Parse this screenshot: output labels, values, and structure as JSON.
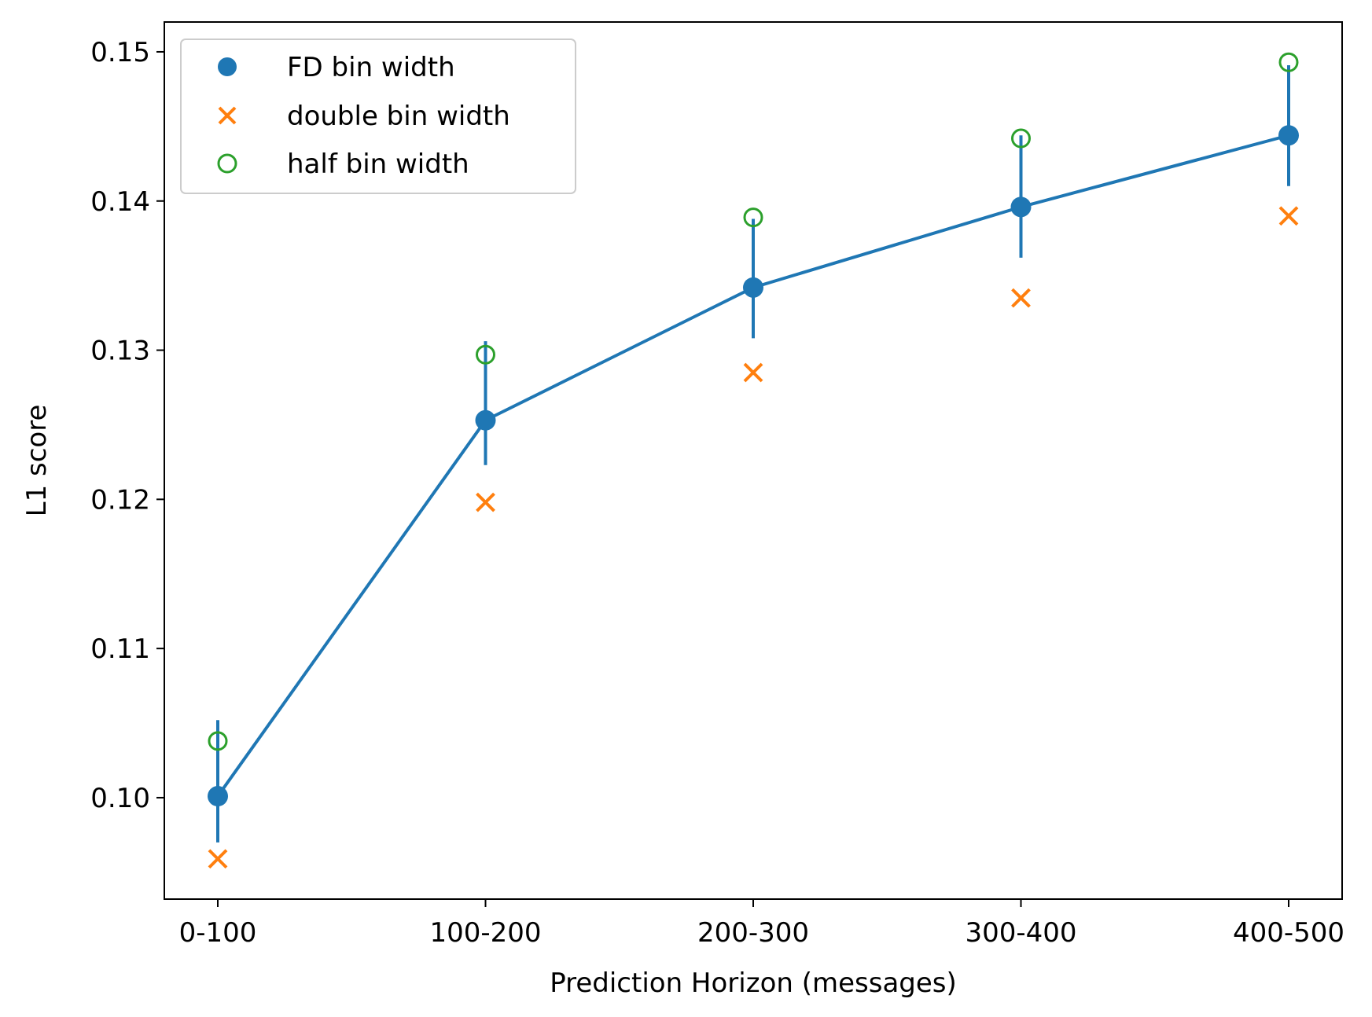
{
  "chart_data": {
    "type": "line",
    "title": "",
    "xlabel": "Prediction Horizon (messages)",
    "ylabel": "L1 score",
    "categories": [
      "0-100",
      "100-200",
      "200-300",
      "300-400",
      "400-500"
    ],
    "ylim": [
      0.0932,
      0.152
    ],
    "yticks": [
      0.1,
      0.11,
      0.12,
      0.13,
      0.14,
      0.15
    ],
    "ytick_labels": [
      "0.10",
      "0.11",
      "0.12",
      "0.13",
      "0.14",
      "0.15"
    ],
    "grid": false,
    "legend_position": "upper-left",
    "series": [
      {
        "name": "FD bin width",
        "marker": "filled-circle",
        "connected": true,
        "color": "#1f77b4",
        "values": [
          0.1001,
          0.1253,
          0.1342,
          0.1396,
          0.1444
        ],
        "error_low": [
          0.097,
          0.1223,
          0.1308,
          0.1362,
          0.141
        ],
        "error_high": [
          0.1052,
          0.1306,
          0.1388,
          0.1444,
          0.1491
        ]
      },
      {
        "name": "double bin width",
        "marker": "x",
        "connected": false,
        "color": "#ff7f0e",
        "values": [
          0.0959,
          0.1198,
          0.1285,
          0.1335,
          0.139
        ]
      },
      {
        "name": "half bin width",
        "marker": "open-circle",
        "connected": false,
        "color": "#2ca02c",
        "values": [
          0.1038,
          0.1297,
          0.1389,
          0.1442,
          0.1493
        ]
      }
    ]
  }
}
